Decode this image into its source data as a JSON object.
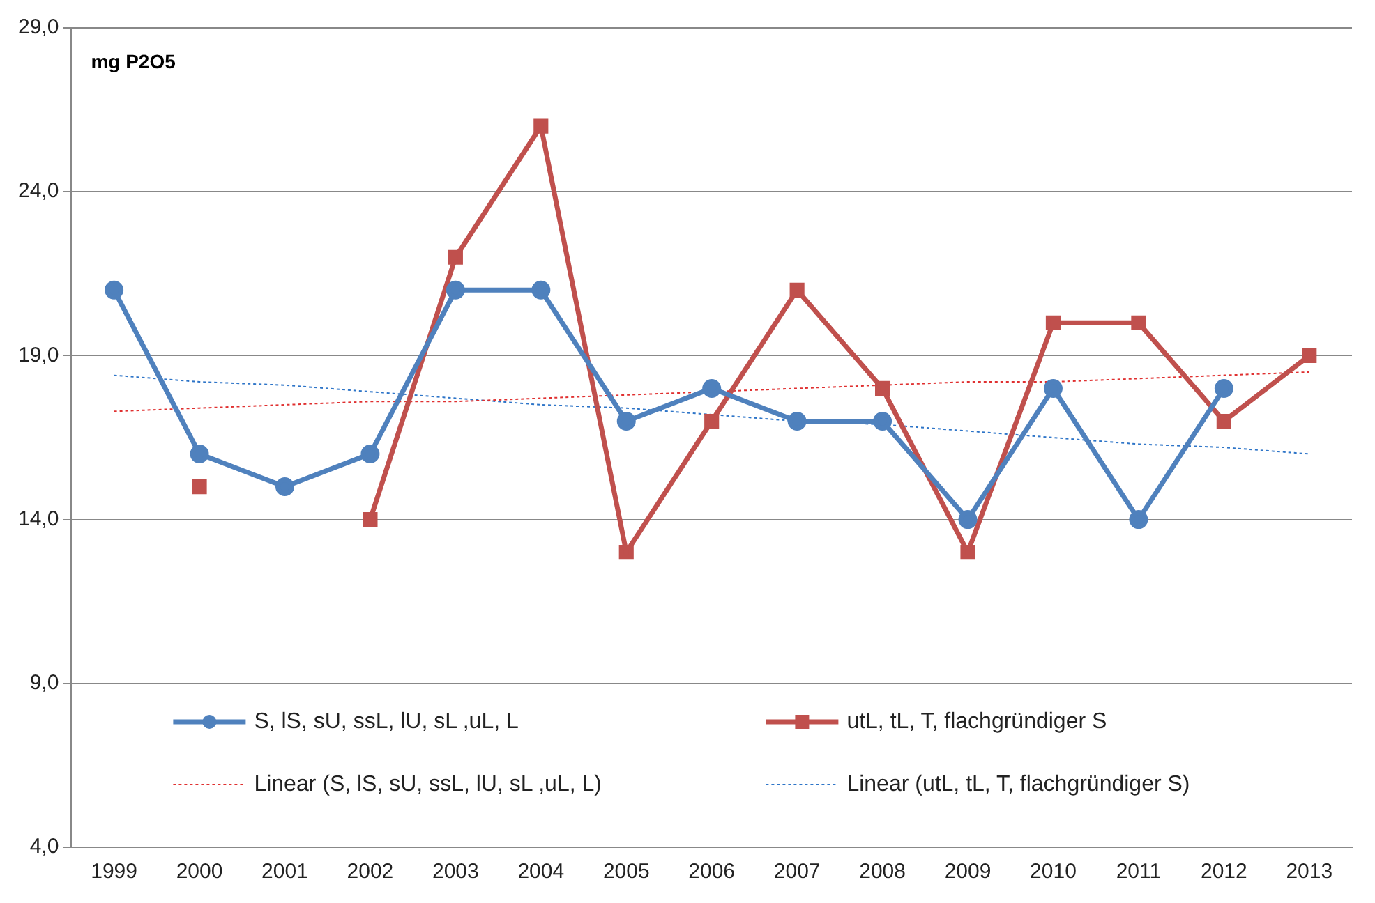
{
  "chart_data": {
    "type": "line",
    "annotations": [
      "mg P2O5"
    ],
    "categories": [
      "1999",
      "2000",
      "2001",
      "2002",
      "2003",
      "2004",
      "2005",
      "2006",
      "2007",
      "2008",
      "2009",
      "2010",
      "2011",
      "2012",
      "2013"
    ],
    "ylim": [
      4,
      29
    ],
    "yticks": [
      {
        "value": 4,
        "label": "4,0"
      },
      {
        "value": 9,
        "label": "9,0"
      },
      {
        "value": 14,
        "label": "14,0"
      },
      {
        "value": 19,
        "label": "19,0"
      },
      {
        "value": 24,
        "label": "24,0"
      },
      {
        "value": 29,
        "label": "29,0"
      }
    ],
    "grid": "y",
    "legend": "bottom",
    "series": [
      {
        "name": "S, lS, sU, ssL, lU, sL ,uL, L",
        "color": "#4f81bd",
        "marker": "circle",
        "line_style": "solid",
        "values": [
          21,
          16,
          15,
          16,
          21,
          21,
          17,
          18,
          17,
          17,
          14,
          18,
          14,
          18,
          null
        ]
      },
      {
        "name": "utL, tL, T, flachgründiger S",
        "color": "#c0504d",
        "marker": "square",
        "line_style": "solid",
        "values": [
          null,
          15,
          null,
          14,
          22,
          26,
          13,
          17,
          21,
          18,
          13,
          20,
          20,
          17,
          19
        ]
      },
      {
        "name": "Linear (S, lS, sU, ssL, lU, sL ,uL, L)",
        "color": "#e03030",
        "marker": "none",
        "line_style": "dotted",
        "values": [
          17.3,
          17.4,
          17.5,
          17.6,
          17.6,
          17.7,
          17.8,
          17.9,
          18.0,
          18.1,
          18.2,
          18.2,
          18.3,
          18.4,
          18.5
        ]
      },
      {
        "name": "Linear (utL, tL, T, flachgründiger S)",
        "color": "#2e75c8",
        "marker": "none",
        "line_style": "dotted",
        "values": [
          18.4,
          18.2,
          18.1,
          17.9,
          17.7,
          17.5,
          17.4,
          17.2,
          17.0,
          16.9,
          16.7,
          16.5,
          16.3,
          16.2,
          16.0
        ]
      }
    ]
  }
}
